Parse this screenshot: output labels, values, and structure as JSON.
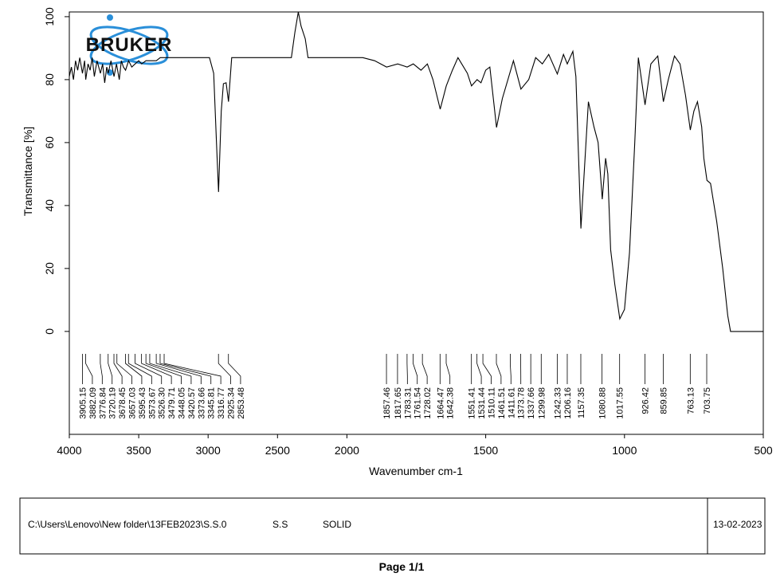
{
  "chart_data": {
    "type": "line",
    "logo": "BRUKER",
    "x_label": "Wavenumber cm-1",
    "y_label": "Transmittance [%]",
    "xlim": [
      4000,
      500
    ],
    "xticks": [
      4000,
      3500,
      3000,
      2500,
      2000,
      1500,
      1000,
      500
    ],
    "x_scale_break": {
      "at": 2000,
      "compression": 2
    },
    "ylim": [
      -32.7,
      101.5
    ],
    "yticks": [
      0,
      20,
      40,
      60,
      80,
      100
    ],
    "color": "#000000",
    "x": [
      4000,
      3985,
      3970,
      3955,
      3940,
      3925,
      3905,
      3890,
      3882,
      3865,
      3850,
      3835,
      3820,
      3800,
      3776,
      3760,
      3745,
      3730,
      3720,
      3700,
      3678,
      3660,
      3640,
      3625,
      3610,
      3595,
      3573,
      3550,
      3526,
      3500,
      3479,
      3448,
      3420,
      3373,
      3345,
      3316,
      3250,
      3150,
      3050,
      2990,
      2960,
      2940,
      2925,
      2905,
      2890,
      2870,
      2853,
      2830,
      2600,
      2400,
      2375,
      2350,
      2330,
      2300,
      2280,
      1943,
      1900,
      1857,
      1817,
      1783,
      1761,
      1733,
      1710,
      1690,
      1664,
      1642,
      1620,
      1600,
      1566,
      1551,
      1531,
      1517,
      1500,
      1485,
      1461,
      1440,
      1420,
      1400,
      1373,
      1345,
      1320,
      1296,
      1273,
      1242,
      1220,
      1206,
      1186,
      1175,
      1157,
      1130,
      1110,
      1095,
      1080,
      1068,
      1060,
      1050,
      1035,
      1017,
      1000,
      982,
      963,
      950,
      926,
      905,
      880,
      860,
      842,
      820,
      800,
      780,
      763,
      750,
      737,
      722,
      714,
      703,
      690,
      668,
      646,
      628,
      618,
      500
    ],
    "values": [
      81,
      84,
      80,
      86,
      83,
      87,
      82,
      86,
      80,
      85,
      83,
      87,
      81,
      86,
      82,
      85,
      79,
      84,
      82,
      86,
      81,
      85,
      80,
      86,
      84,
      83,
      86,
      84,
      85,
      86,
      85,
      86,
      86,
      86,
      87,
      87,
      87,
      87,
      87,
      87,
      82,
      60,
      44.3,
      70,
      78.7,
      79,
      73,
      87,
      87,
      87,
      95,
      101.5,
      97,
      93,
      87,
      87,
      86,
      84,
      85,
      84,
      85,
      83,
      85,
      80,
      70.6,
      78,
      83,
      87,
      82,
      78,
      80,
      79,
      83,
      84,
      64.8,
      74,
      80,
      86,
      77,
      80,
      87,
      85,
      88,
      81.8,
      88,
      85,
      89,
      81,
      32.7,
      73,
      65,
      60,
      42,
      55,
      50,
      26,
      15,
      4,
      7,
      25,
      60,
      87,
      72,
      85,
      87.5,
      73,
      80,
      87.5,
      85,
      75,
      64,
      70,
      73,
      65,
      55,
      48,
      47,
      35,
      20,
      5,
      0,
      0
    ],
    "peaks": {
      "values": [
        3905.15,
        3882.09,
        3776.84,
        3720.19,
        3678.45,
        3657.03,
        3595.43,
        3573.67,
        3526.3,
        3479.71,
        3448.05,
        3420.57,
        3373.66,
        3345.81,
        3316.77,
        2925.34,
        2853.48,
        1857.46,
        1817.65,
        1783.31,
        1761.54,
        1728.02,
        1664.47,
        1642.38,
        1551.41,
        1531.44,
        1510.11,
        1461.51,
        1411.61,
        1373.78,
        1337.66,
        1299.98,
        1242.33,
        1206.16,
        1157.35,
        1080.88,
        1017.55,
        926.42,
        859.85,
        763.13,
        703.75
      ],
      "value_labels": [
        "3905.15",
        "3882.09",
        "3776.84",
        "3720.19",
        "3678.45",
        "3657.03",
        "3595.43",
        "3573.67",
        "3526.30",
        "3479.71",
        "3448.05",
        "3420.57",
        "3373.66",
        "3345.81",
        "3316.77",
        "2925.34",
        "2853.48",
        "1857.46",
        "1817.65",
        "1783.31",
        "1761.54",
        "1728.02",
        "1664.47",
        "1642.38",
        "1551.41",
        "1531.44",
        "1510.11",
        "1461.51",
        "1411.61",
        "1373.78",
        "1337.66",
        "1299.98",
        "1242.33",
        "1206.16",
        "1157.35",
        "1080.88",
        "1017.55",
        "926.42",
        "859.85",
        "763.13",
        "703.75"
      ]
    }
  },
  "footer": {
    "path": "C:\\Users\\Lenovo\\New folder\\13FEB2023\\S.S.0",
    "sample": "S.S",
    "form": "SOLID",
    "date": "13-02-2023",
    "page": "Page 1/1"
  }
}
